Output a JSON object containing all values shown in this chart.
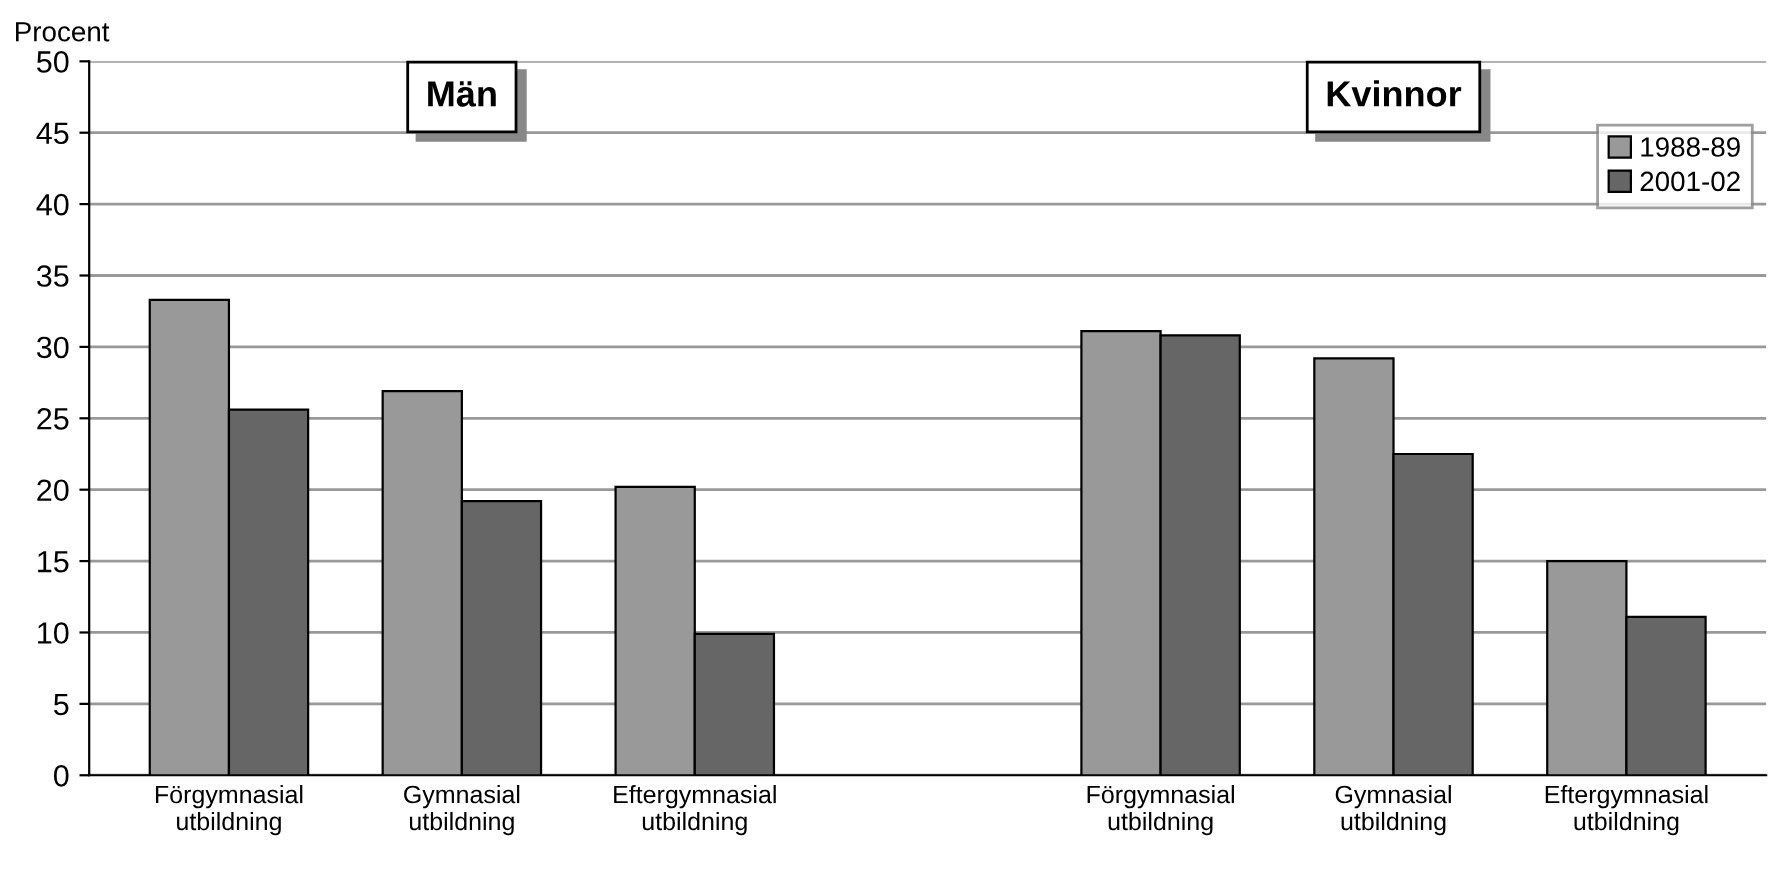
{
  "chart_data": {
    "type": "bar",
    "ylabel": "Procent",
    "categories": [
      "Förgymnasial\nutbildning",
      "Gymnasial\nutbildning",
      "Eftergymnasial\nutbildning",
      null,
      "Förgymnasial\nutbildning",
      "Gymnasial\nutbildning",
      "Eftergymnasial\nutbildning"
    ],
    "series": [
      {
        "name": "1988-89",
        "color": "#999999",
        "values": [
          33.3,
          26.9,
          20.2,
          null,
          31.1,
          29.2,
          15.0
        ]
      },
      {
        "name": "2001-02",
        "color": "#666666",
        "values": [
          25.6,
          19.2,
          9.9,
          null,
          30.8,
          22.5,
          11.1
        ]
      }
    ],
    "annotations": [
      "Män",
      "Kvinnor"
    ],
    "ylim": [
      0,
      50
    ],
    "yticks": [
      0,
      5,
      10,
      15,
      20,
      25,
      30,
      35,
      40,
      45,
      50
    ],
    "grid": "y",
    "legend": "top right"
  }
}
